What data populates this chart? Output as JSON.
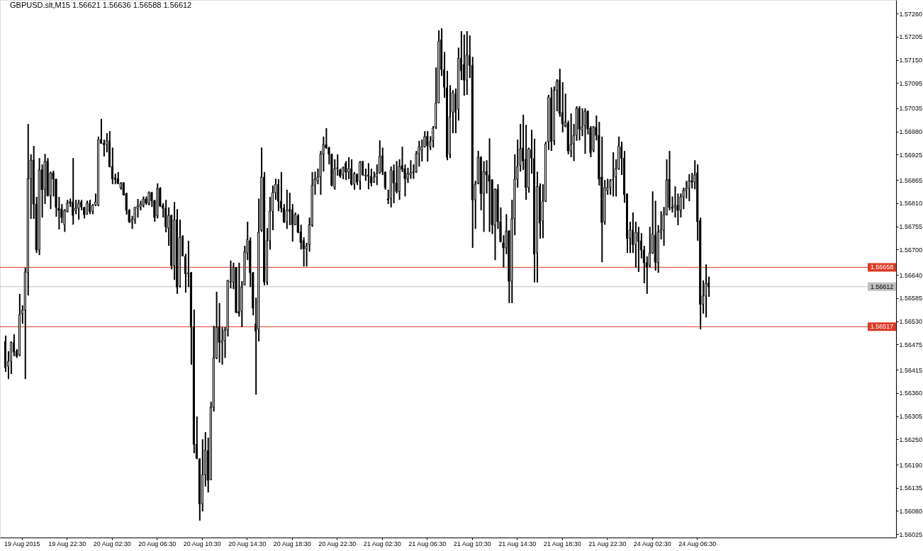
{
  "chart_data": {
    "type": "candlestick",
    "title": "GBPUSD.slt,M15  1.56621 1.56636 1.56588 1.56612",
    "color": "#000000",
    "categories": [
      null,
      null,
      null,
      null,
      null,
      null,
      "19 Aug 2015",
      null,
      null,
      null,
      null,
      null,
      null,
      null,
      null,
      null,
      null,
      null,
      null,
      null,
      null,
      null,
      "19 Aug 22:30",
      null,
      null,
      null,
      null,
      null,
      null,
      null,
      null,
      null,
      null,
      null,
      null,
      null,
      null,
      null,
      "20 Aug 02:30",
      null,
      null,
      null,
      null,
      null,
      null,
      null,
      null,
      null,
      null,
      null,
      null,
      null,
      null,
      null,
      "20 Aug 06:30",
      null,
      null,
      null,
      null,
      null,
      null,
      null,
      null,
      null,
      null,
      null,
      null,
      null,
      null,
      null,
      "20 Aug 10:30",
      null,
      null,
      null,
      null,
      null,
      null,
      null,
      null,
      null,
      null,
      null,
      null,
      null,
      null,
      null,
      "20 Aug 14:30",
      null,
      null,
      null,
      null,
      null,
      null,
      null,
      null,
      null,
      null,
      null,
      null,
      null,
      null,
      null,
      "20 Aug 18:30",
      null,
      null,
      null,
      null,
      null,
      null,
      null,
      null,
      null,
      null,
      null,
      null,
      null,
      null,
      null,
      "20 Aug 22:30",
      null,
      null,
      null,
      null,
      null,
      null,
      null,
      null,
      null,
      null,
      null,
      null,
      null,
      null,
      null,
      "21 Aug 02:30",
      null,
      null,
      null,
      null,
      null,
      null,
      null,
      null,
      null,
      null,
      null,
      null,
      null,
      null,
      null,
      "21 Aug 06:30",
      null,
      null,
      null,
      null,
      null,
      null,
      null,
      null,
      null,
      null,
      null,
      null,
      null,
      null,
      null,
      "21 Aug 10:30",
      null,
      null,
      null,
      null,
      null,
      null,
      null,
      null,
      null,
      null,
      null,
      null,
      null,
      null,
      null,
      "21 Aug 14:30",
      null,
      null,
      null,
      null,
      null,
      null,
      null,
      null,
      null,
      null,
      null,
      null,
      null,
      null,
      null,
      "21 Aug 18:30",
      null,
      null,
      null,
      null,
      null,
      null,
      null,
      null,
      null,
      null,
      null,
      null,
      null,
      null,
      null,
      "21 Aug 22:30",
      null,
      null,
      null,
      null,
      null,
      null,
      null,
      null,
      null,
      null,
      null,
      null,
      null,
      null,
      null,
      "24 Aug 02:30",
      null,
      null,
      null,
      null,
      null,
      null,
      null,
      null,
      null,
      null,
      null,
      null,
      null,
      null,
      null,
      "24 Aug 06:30",
      null,
      null,
      null,
      null,
      null,
      null,
      null,
      null,
      null,
      null,
      null,
      null,
      null,
      null,
      null,
      null,
      null,
      null,
      null,
      null,
      null,
      null,
      null,
      null,
      null,
      null,
      null,
      null,
      null,
      null,
      null,
      null,
      null,
      null,
      null,
      null,
      null,
      null,
      null,
      null,
      null,
      null,
      null,
      null,
      null,
      null,
      null,
      null,
      null,
      null,
      null,
      null,
      null,
      null,
      null,
      null,
      null,
      null,
      null,
      null,
      null,
      null,
      null,
      null,
      null,
      null,
      null,
      null,
      null
    ],
    "ohlc": [
      [
        1.56482,
        1.56496,
        1.5641,
        1.5642
      ],
      [
        1.56423,
        1.56459,
        1.56393,
        1.56435
      ],
      [
        1.56435,
        1.56482,
        1.56405,
        1.5648
      ],
      [
        1.56479,
        1.56499,
        1.56447,
        1.56457
      ],
      [
        1.56459,
        1.56464,
        1.56443,
        1.56447
      ],
      [
        1.5645,
        1.56595,
        1.56447,
        1.56546
      ],
      [
        1.56548,
        1.56568,
        1.56524,
        1.56556
      ],
      [
        1.56556,
        1.56657,
        1.56393,
        1.56647
      ],
      [
        1.56645,
        1.56998,
        1.56591,
        1.56868
      ],
      [
        1.56868,
        1.56926,
        1.56773,
        1.56912
      ],
      [
        1.56912,
        1.56946,
        1.56773,
        1.56808
      ],
      [
        1.56808,
        1.56825,
        1.56692,
        1.56699
      ],
      [
        1.56699,
        1.56917,
        1.56687,
        1.56889
      ],
      [
        1.56889,
        1.56902,
        1.56776,
        1.56842
      ],
      [
        1.56843,
        1.56927,
        1.56808,
        1.56909
      ],
      [
        1.5691,
        1.56917,
        1.56826,
        1.56828
      ],
      [
        1.56828,
        1.56885,
        1.56796,
        1.56882
      ],
      [
        1.56882,
        1.56887,
        1.56826,
        1.56867
      ],
      [
        1.56867,
        1.56868,
        1.56778,
        1.568
      ],
      [
        1.56798,
        1.56825,
        1.56748,
        1.56793
      ],
      [
        1.56796,
        1.56808,
        1.56763,
        1.56776
      ],
      [
        1.56759,
        1.56796,
        1.56742,
        1.56793
      ],
      [
        1.5679,
        1.56818,
        1.56788,
        1.5681
      ],
      [
        1.56813,
        1.56821,
        1.56801,
        1.5681
      ],
      [
        1.56813,
        1.56917,
        1.56759,
        1.56781
      ],
      [
        1.56793,
        1.56818,
        1.56784,
        1.56798
      ],
      [
        1.56798,
        1.56818,
        1.56771,
        1.5681
      ],
      [
        1.56813,
        1.56818,
        1.56793,
        1.56801
      ],
      [
        1.568,
        1.56801,
        1.56774,
        1.56783
      ],
      [
        1.56784,
        1.56816,
        1.56783,
        1.5681
      ],
      [
        1.5681,
        1.56818,
        1.56784,
        1.5679
      ],
      [
        1.56791,
        1.56808,
        1.56784,
        1.56805
      ],
      [
        1.56806,
        1.56833,
        1.56803,
        1.56813
      ],
      [
        1.56805,
        1.56968,
        1.56803,
        1.56961
      ],
      [
        1.56961,
        1.5701,
        1.56951,
        1.56952
      ],
      [
        1.56952,
        1.56961,
        1.56921,
        1.56949
      ],
      [
        1.56949,
        1.56976,
        1.56931,
        1.56958
      ],
      [
        1.56958,
        1.56981,
        1.56895,
        1.56897
      ],
      [
        1.56897,
        1.56942,
        1.56855,
        1.56868
      ],
      [
        1.5687,
        1.5688,
        1.56855,
        1.56867
      ],
      [
        1.56868,
        1.56884,
        1.56855,
        1.56857
      ],
      [
        1.56847,
        1.5686,
        1.56842,
        1.56857
      ],
      [
        1.56858,
        1.5686,
        1.56828,
        1.5683
      ],
      [
        1.56833,
        1.56835,
        1.56783,
        1.56793
      ],
      [
        1.56793,
        1.56796,
        1.56763,
        1.56766
      ],
      [
        1.56766,
        1.5678,
        1.56749,
        1.56771
      ],
      [
        1.56771,
        1.56801,
        1.56761,
        1.568
      ],
      [
        1.56798,
        1.5682,
        1.56776,
        1.56803
      ],
      [
        1.56801,
        1.56816,
        1.56793,
        1.56808
      ],
      [
        1.56805,
        1.56826,
        1.568,
        1.5682
      ],
      [
        1.5682,
        1.56826,
        1.56806,
        1.5681
      ],
      [
        1.5681,
        1.56838,
        1.56805,
        1.56835
      ],
      [
        1.56835,
        1.56837,
        1.56801,
        1.56816
      ],
      [
        1.56816,
        1.56818,
        1.56766,
        1.56776
      ],
      [
        1.5678,
        1.56857,
        1.56774,
        1.56845
      ],
      [
        1.56845,
        1.56848,
        1.56801,
        1.56803
      ],
      [
        1.56805,
        1.5681,
        1.56776,
        1.56798
      ],
      [
        1.56798,
        1.56818,
        1.56741,
        1.56754
      ],
      [
        1.56751,
        1.568,
        1.56709,
        1.56781
      ],
      [
        1.56781,
        1.56783,
        1.56653,
        1.56662
      ],
      [
        1.56662,
        1.56813,
        1.56628,
        1.56771
      ],
      [
        1.56771,
        1.56796,
        1.56595,
        1.56611
      ],
      [
        1.56613,
        1.56771,
        1.5661,
        1.56729
      ],
      [
        1.56731,
        1.56734,
        1.56684,
        1.56685
      ],
      [
        1.56684,
        1.5669,
        1.56598,
        1.56643
      ],
      [
        1.56642,
        1.56721,
        1.56611,
        1.56645
      ],
      [
        1.56645,
        1.56647,
        1.56427,
        1.56516
      ],
      [
        1.56516,
        1.56558,
        1.56217,
        1.56238
      ],
      [
        1.56238,
        1.56304,
        1.56203,
        1.56205
      ],
      [
        1.56203,
        1.56205,
        1.56057,
        1.56097
      ],
      [
        1.56097,
        1.5625,
        1.56079,
        1.56166
      ],
      [
        1.56166,
        1.56267,
        1.56138,
        1.56225
      ],
      [
        1.56223,
        1.56254,
        1.56124,
        1.56153
      ],
      [
        1.56154,
        1.56339,
        1.56153,
        1.56326
      ],
      [
        1.56326,
        1.56519,
        1.56316,
        1.56443
      ],
      [
        1.56443,
        1.566,
        1.5644,
        1.56516
      ],
      [
        1.56516,
        1.56573,
        1.56432,
        1.5648
      ],
      [
        1.5648,
        1.56516,
        1.56427,
        1.56484
      ],
      [
        1.56484,
        1.56516,
        1.56443,
        1.56509
      ],
      [
        1.56509,
        1.56628,
        1.56494,
        1.56627
      ],
      [
        1.56623,
        1.56674,
        1.56608,
        1.56625
      ],
      [
        1.56623,
        1.56669,
        1.56606,
        1.56658
      ],
      [
        1.56657,
        1.56658,
        1.56549,
        1.56551
      ],
      [
        1.56553,
        1.56669,
        1.56541,
        1.56549
      ],
      [
        1.56554,
        1.56625,
        1.56516,
        1.56611
      ],
      [
        1.56616,
        1.56709,
        1.56615,
        1.56695
      ],
      [
        1.56692,
        1.56766,
        1.56675,
        1.56724
      ],
      [
        1.56721,
        1.56729,
        1.56611,
        1.56645
      ],
      [
        1.56645,
        1.56647,
        1.56544,
        1.56561
      ],
      [
        1.56524,
        1.56586,
        1.56356,
        1.56507
      ],
      [
        1.56511,
        1.56821,
        1.56482,
        1.56741
      ],
      [
        1.56746,
        1.56942,
        1.56742,
        1.56872
      ],
      [
        1.56872,
        1.56884,
        1.56615,
        1.56623
      ],
      [
        1.56623,
        1.56751,
        1.56616,
        1.56721
      ],
      [
        1.56721,
        1.56825,
        1.567,
        1.56791
      ],
      [
        1.56791,
        1.56852,
        1.56746,
        1.56835
      ],
      [
        1.56835,
        1.56868,
        1.56818,
        1.56855
      ],
      [
        1.56855,
        1.56867,
        1.56791,
        1.56815
      ],
      [
        1.56815,
        1.56884,
        1.56788,
        1.56798
      ],
      [
        1.56798,
        1.56808,
        1.56763,
        1.56766
      ],
      [
        1.56766,
        1.56842,
        1.56749,
        1.56793
      ],
      [
        1.56795,
        1.56835,
        1.56758,
        1.56791
      ],
      [
        1.56795,
        1.56808,
        1.56719,
        1.56759
      ],
      [
        1.56759,
        1.56788,
        1.56758,
        1.56783
      ],
      [
        1.5678,
        1.56784,
        1.56739,
        1.56741
      ],
      [
        1.56742,
        1.56759,
        1.567,
        1.56717
      ],
      [
        1.56721,
        1.56729,
        1.5666,
        1.56702
      ],
      [
        1.56702,
        1.56716,
        1.5666,
        1.56709
      ],
      [
        1.56712,
        1.56776,
        1.56695,
        1.56759
      ],
      [
        1.56758,
        1.56884,
        1.56754,
        1.56852
      ],
      [
        1.56852,
        1.56885,
        1.5683,
        1.56867
      ],
      [
        1.56863,
        1.56892,
        1.56855,
        1.56872
      ],
      [
        1.56872,
        1.56934,
        1.5683,
        1.56926
      ],
      [
        1.56926,
        1.56968,
        1.56885,
        1.56949
      ],
      [
        1.56949,
        1.56988,
        1.56939,
        1.56941
      ],
      [
        1.56941,
        1.56944,
        1.56902,
        1.56926
      ],
      [
        1.56926,
        1.56927,
        1.5685,
        1.56852
      ],
      [
        1.56848,
        1.56914,
        1.56842,
        1.56892
      ],
      [
        1.56892,
        1.56926,
        1.56875,
        1.56894
      ],
      [
        1.56889,
        1.56892,
        1.5687,
        1.56874
      ],
      [
        1.56877,
        1.56897,
        1.56867,
        1.56894
      ],
      [
        1.56905,
        1.5691,
        1.56865,
        1.56884
      ],
      [
        1.56884,
        1.56919,
        1.56867,
        1.56892
      ],
      [
        1.56892,
        1.56914,
        1.56852,
        1.56855
      ],
      [
        1.56855,
        1.56884,
        1.56842,
        1.5688
      ],
      [
        1.56879,
        1.5688,
        1.56853,
        1.5686
      ],
      [
        1.56862,
        1.5691,
        1.56842,
        1.56907
      ],
      [
        1.56909,
        1.5691,
        1.56875,
        1.56877
      ],
      [
        1.56875,
        1.56892,
        1.56863,
        1.56877
      ],
      [
        1.56877,
        1.56905,
        1.56843,
        1.56874
      ],
      [
        1.56874,
        1.56892,
        1.5685,
        1.56858
      ],
      [
        1.5686,
        1.56885,
        1.56858,
        1.56872
      ],
      [
        1.56872,
        1.56902,
        1.56853,
        1.5688
      ],
      [
        1.56882,
        1.56959,
        1.5688,
        1.56921
      ],
      [
        1.56922,
        1.56942,
        1.56877,
        1.56884
      ],
      [
        1.56884,
        1.56885,
        1.56842,
        1.56847
      ],
      [
        1.5682,
        1.56842,
        1.56808,
        1.56818
      ],
      [
        1.56821,
        1.56897,
        1.568,
        1.56889
      ],
      [
        1.56887,
        1.56902,
        1.5681,
        1.56858
      ],
      [
        1.56858,
        1.5691,
        1.56833,
        1.56838
      ],
      [
        1.56838,
        1.56914,
        1.56818,
        1.56897
      ],
      [
        1.56899,
        1.56944,
        1.56884,
        1.5689
      ],
      [
        1.56892,
        1.56902,
        1.56826,
        1.56868
      ],
      [
        1.56868,
        1.56894,
        1.56858,
        1.5688
      ],
      [
        1.56877,
        1.56912,
        1.56868,
        1.56882
      ],
      [
        1.56882,
        1.56902,
        1.56868,
        1.56884
      ],
      [
        1.56884,
        1.56934,
        1.56882,
        1.56927
      ],
      [
        1.56927,
        1.56958,
        1.56897,
        1.56944
      ],
      [
        1.56936,
        1.56961,
        1.56909,
        1.56944
      ],
      [
        1.56944,
        1.56981,
        1.56942,
        1.56968
      ],
      [
        1.56969,
        1.56981,
        1.56909,
        1.56946
      ],
      [
        1.56944,
        1.56969,
        1.56936,
        1.56956
      ],
      [
        1.56958,
        1.56993,
        1.56942,
        1.56988
      ],
      [
        1.5699,
        1.57132,
        1.56986,
        1.57047
      ],
      [
        1.57048,
        1.5722,
        1.57047,
        1.57194
      ],
      [
        1.57198,
        1.57225,
        1.57112,
        1.57127
      ],
      [
        1.57127,
        1.57169,
        1.5706,
        1.57085
      ],
      [
        1.57084,
        1.57124,
        1.56912,
        1.56919
      ],
      [
        1.56926,
        1.5709,
        1.56917,
        1.57015
      ],
      [
        1.57026,
        1.57078,
        1.56976,
        1.57072
      ],
      [
        1.5707,
        1.57082,
        1.56976,
        1.57026
      ],
      [
        1.57033,
        1.57179,
        1.57006,
        1.57154
      ],
      [
        1.57154,
        1.57218,
        1.57102,
        1.57124
      ],
      [
        1.57139,
        1.5721,
        1.57065,
        1.57102
      ],
      [
        1.57102,
        1.57218,
        1.57067,
        1.57162
      ],
      [
        1.57161,
        1.57208,
        1.57107,
        1.57137
      ],
      [
        1.57137,
        1.57157,
        1.56704,
        1.56818
      ],
      [
        1.56818,
        1.56863,
        1.56749,
        1.56855
      ],
      [
        1.56857,
        1.56934,
        1.56855,
        1.56919
      ],
      [
        1.56919,
        1.56921,
        1.56793,
        1.56833
      ],
      [
        1.56833,
        1.5691,
        1.56742,
        1.56885
      ],
      [
        1.56885,
        1.56912,
        1.56833,
        1.56877
      ],
      [
        1.56877,
        1.56964,
        1.56742,
        1.56862
      ],
      [
        1.56865,
        1.56867,
        1.56737,
        1.56759
      ],
      [
        1.56758,
        1.56845,
        1.56675,
        1.56843
      ],
      [
        1.56843,
        1.56855,
        1.56749,
        1.56766
      ],
      [
        1.56766,
        1.568,
        1.56717,
        1.56719
      ],
      [
        1.56716,
        1.56734,
        1.56658,
        1.56704
      ],
      [
        1.56704,
        1.56784,
        1.56689,
        1.56744
      ],
      [
        1.56744,
        1.56746,
        1.56573,
        1.56625
      ],
      [
        1.56625,
        1.56818,
        1.56573,
        1.56773
      ],
      [
        1.56773,
        1.56926,
        1.56734,
        1.56867
      ],
      [
        1.56867,
        1.56961,
        1.56847,
        1.56897
      ],
      [
        1.569,
        1.56998,
        1.56885,
        1.56939
      ],
      [
        1.56941,
        1.5702,
        1.56889,
        1.5691
      ],
      [
        1.56914,
        1.56996,
        1.56818,
        1.56847
      ],
      [
        1.56847,
        1.56942,
        1.56835,
        1.56939
      ],
      [
        1.56937,
        1.56984,
        1.5688,
        1.56917
      ],
      [
        1.56916,
        1.56963,
        1.56622,
        1.56689
      ],
      [
        1.56692,
        1.56885,
        1.56622,
        1.5685
      ],
      [
        1.5685,
        1.56857,
        1.56726,
        1.56763
      ],
      [
        1.56768,
        1.56855,
        1.56727,
        1.56815
      ],
      [
        1.56815,
        1.56956,
        1.56813,
        1.56951
      ],
      [
        1.56956,
        1.57067,
        1.56936,
        1.57062
      ],
      [
        1.5706,
        1.57085,
        1.56934,
        1.56956
      ],
      [
        1.56958,
        1.57087,
        1.56948,
        1.57078
      ],
      [
        1.57078,
        1.57104,
        1.57028,
        1.57099
      ],
      [
        1.57102,
        1.57129,
        1.57015,
        1.57023
      ],
      [
        1.57025,
        1.57097,
        1.56978,
        1.56998
      ],
      [
        1.56993,
        1.5707,
        1.5699,
        1.57003
      ],
      [
        1.57,
        1.57006,
        1.56926,
        1.56934
      ],
      [
        1.56934,
        1.57023,
        1.56919,
        1.56949
      ],
      [
        1.56951,
        1.56998,
        1.5691,
        1.56971
      ],
      [
        1.56971,
        1.5704,
        1.56958,
        1.57035
      ],
      [
        1.57035,
        1.5704,
        1.56959,
        1.56986
      ],
      [
        1.56984,
        1.57035,
        1.56969,
        1.56991
      ],
      [
        1.56994,
        1.57035,
        1.56927,
        1.57028
      ],
      [
        1.57028,
        1.5703,
        1.56973,
        1.56986
      ],
      [
        1.56988,
        1.56993,
        1.56919,
        1.56929
      ],
      [
        1.56936,
        1.56993,
        1.56931,
        1.56991
      ],
      [
        1.5699,
        1.57018,
        1.56959,
        1.56971
      ],
      [
        1.56971,
        1.57003,
        1.56852,
        1.56867
      ],
      [
        1.56872,
        1.56968,
        1.5667,
        1.56764
      ],
      [
        1.56766,
        1.56865,
        1.56759,
        1.56847
      ],
      [
        1.5684,
        1.56868,
        1.5683,
        1.56847
      ],
      [
        1.56847,
        1.56867,
        1.5683,
        1.56863
      ],
      [
        1.56865,
        1.56931,
        1.56826,
        1.56867
      ],
      [
        1.56872,
        1.56914,
        1.56826,
        1.56892
      ],
      [
        1.56892,
        1.56968,
        1.56889,
        1.56946
      ],
      [
        1.56944,
        1.56956,
        1.56877,
        1.56916
      ],
      [
        1.56917,
        1.56934,
        1.56811,
        1.5683
      ],
      [
        1.56832,
        1.56833,
        1.56692,
        1.56726
      ],
      [
        1.56727,
        1.56766,
        1.56692,
        1.56746
      ],
      [
        1.56746,
        1.56788,
        1.56692,
        1.56712
      ],
      [
        1.56712,
        1.56766,
        1.56657,
        1.56741
      ],
      [
        1.56741,
        1.56754,
        1.56647,
        1.56719
      ],
      [
        1.56721,
        1.56739,
        1.56679,
        1.56699
      ],
      [
        1.56699,
        1.56709,
        1.5662,
        1.56669
      ],
      [
        1.56669,
        1.56684,
        1.56595,
        1.56658
      ],
      [
        1.56662,
        1.56754,
        1.56658,
        1.56692
      ],
      [
        1.56692,
        1.56838,
        1.5669,
        1.56737
      ],
      [
        1.56734,
        1.56816,
        1.5665,
        1.5667
      ],
      [
        1.56669,
        1.56758,
        1.56645,
        1.56742
      ],
      [
        1.56741,
        1.56791,
        1.56724,
        1.56746
      ],
      [
        1.56746,
        1.56801,
        1.56709,
        1.56783
      ],
      [
        1.56783,
        1.56914,
        1.56781,
        1.56865
      ],
      [
        1.56867,
        1.56934,
        1.56793,
        1.568
      ],
      [
        1.568,
        1.56826,
        1.56788,
        1.56798
      ],
      [
        1.568,
        1.5685,
        1.56776,
        1.56805
      ],
      [
        1.56805,
        1.56833,
        1.56758,
        1.56793
      ],
      [
        1.56793,
        1.56833,
        1.56776,
        1.56825
      ],
      [
        1.56825,
        1.56847,
        1.56796,
        1.5684
      ],
      [
        1.5684,
        1.56863,
        1.56821,
        1.56845
      ],
      [
        1.56845,
        1.56879,
        1.56815,
        1.56863
      ],
      [
        1.56863,
        1.56882,
        1.56845,
        1.5686
      ],
      [
        1.5686,
        1.56912,
        1.56843,
        1.56877
      ],
      [
        1.56882,
        1.56902,
        1.56721,
        1.56766
      ],
      [
        1.56769,
        1.56776,
        1.56511,
        1.5657
      ],
      [
        1.5657,
        1.56627,
        1.56548,
        1.5659
      ],
      [
        1.5659,
        1.56665,
        1.56539,
        1.5662
      ],
      [
        1.56621,
        1.56636,
        1.56588,
        1.56612
      ],
      null,
      null,
      null,
      null,
      null,
      null,
      null,
      null,
      null,
      null,
      null,
      null,
      null,
      null,
      null,
      null,
      null,
      null,
      null,
      null,
      null,
      null,
      null,
      null,
      null,
      null,
      null,
      null,
      null,
      null,
      null,
      null,
      null,
      null,
      null,
      null,
      null,
      null,
      null,
      null,
      null,
      null,
      null,
      null,
      null,
      null,
      null,
      null,
      null,
      null,
      null,
      null,
      null,
      null,
      null,
      null,
      null,
      null,
      null,
      null,
      null,
      null,
      null,
      null,
      null
    ],
    "ylim": [
      1.56017,
      1.57292
    ],
    "yticks": [
      {
        "value": 1.5726,
        "label": "1.57260"
      },
      1.57205,
      {
        "value": 1.5715,
        "label": "1.57150"
      },
      1.57095,
      1.57035,
      {
        "value": 1.5698,
        "label": "1.56980"
      },
      1.56925,
      1.56865,
      {
        "value": 1.5681,
        "label": "1.56810"
      },
      1.56755,
      {
        "value": 1.567,
        "label": "1.56700"
      },
      {
        "value": 1.5664,
        "label": "1.56640"
      },
      1.56585,
      {
        "value": 1.5653,
        "label": "1.56530"
      },
      1.56475,
      1.56415,
      {
        "value": 1.5636,
        "label": "1.56360"
      },
      1.56305,
      {
        "value": 1.5625,
        "label": "1.56250"
      },
      {
        "value": 1.5619,
        "label": "1.56190"
      },
      1.56135,
      {
        "value": 1.5608,
        "label": "1.56080"
      },
      1.56025
    ],
    "ref_lines": [
      {
        "axis": "y",
        "value": 1.56658,
        "label": "1.56658",
        "color": "#dc3a26"
      },
      {
        "axis": "y",
        "value": 1.56612,
        "label": "1.56612",
        "color": "#c0c0c0"
      },
      {
        "axis": "y",
        "value": 1.56517,
        "label": "1.56517",
        "color": "#dc3a26"
      }
    ]
  }
}
